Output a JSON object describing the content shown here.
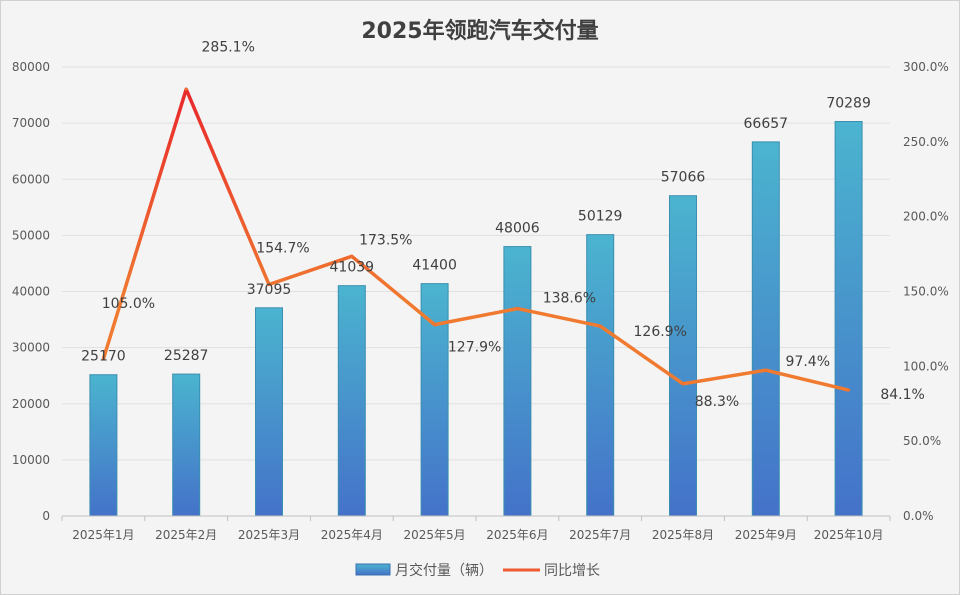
{
  "chart_data": {
    "type": "bar+line",
    "title": "2025年领跑汽车交付量",
    "categories": [
      "2025年1月",
      "2025年2月",
      "2025年3月",
      "2025年4月",
      "2025年5月",
      "2025年6月",
      "2025年7月",
      "2025年8月",
      "2025年9月",
      "2025年10月"
    ],
    "series": [
      {
        "name": "月交付量（辆）",
        "type": "bar",
        "axis": "left",
        "values": [
          25170,
          25287,
          37095,
          41039,
          41400,
          48006,
          50129,
          57066,
          66657,
          70289
        ],
        "labels": [
          "25170",
          "25287",
          "37095",
          "41039",
          "41400",
          "48006",
          "50129",
          "57066",
          "66657",
          "70289"
        ],
        "color": "#4a9fd0"
      },
      {
        "name": "同比增长",
        "type": "line",
        "axis": "right",
        "values": [
          105.0,
          285.1,
          154.7,
          173.5,
          127.9,
          138.6,
          126.9,
          88.3,
          97.4,
          84.1
        ],
        "labels": [
          "105.0%",
          "285.1%",
          "154.7%",
          "173.5%",
          "127.9%",
          "138.6%",
          "126.9%",
          "88.3%",
          "97.4%",
          "84.1%"
        ],
        "color": "#f07030",
        "color_high": "#e8262b"
      }
    ],
    "y_left": {
      "range": [
        0,
        80000
      ],
      "ticks": [
        "0",
        "10000",
        "20000",
        "30000",
        "40000",
        "50000",
        "60000",
        "70000",
        "80000"
      ]
    },
    "y_right": {
      "range": [
        0,
        300
      ],
      "ticks": [
        "0.0%",
        "50.0%",
        "100.0%",
        "150.0%",
        "200.0%",
        "250.0%",
        "300.0%"
      ]
    },
    "grid": true,
    "legend": "bottom"
  }
}
